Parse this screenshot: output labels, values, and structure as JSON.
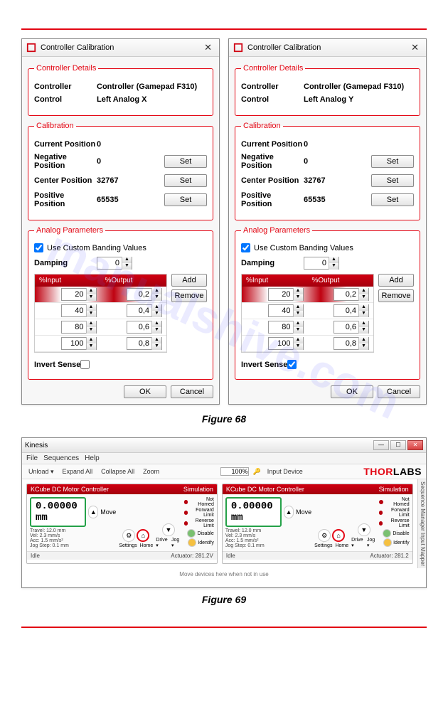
{
  "watermark": "manualshive.com",
  "hrule_color": "#e30613",
  "dialogs": {
    "left": {
      "title": "Controller Calibration",
      "details": {
        "legend": "Controller Details",
        "controller_lbl": "Controller",
        "controller_val": "Controller (Gamepad F310)",
        "control_lbl": "Control",
        "control_val": "Left Analog X"
      },
      "calibration": {
        "legend": "Calibration",
        "current_lbl": "Current Position",
        "current_val": "0",
        "negative_lbl": "Negative Position",
        "negative_val": "0",
        "center_lbl": "Center Position",
        "center_val": "32767",
        "positive_lbl": "Positive Position",
        "positive_val": "65535",
        "set_btn": "Set"
      },
      "analog": {
        "legend": "Analog Parameters",
        "use_custom_lbl": "Use Custom Banding Values",
        "use_custom_checked": true,
        "damping_lbl": "Damping",
        "damping_val": "0",
        "head_in": "%Input",
        "head_out": "%Output",
        "rows": [
          [
            "20",
            "0,2"
          ],
          [
            "40",
            "0,4"
          ],
          [
            "80",
            "0,6"
          ],
          [
            "100",
            "0,8"
          ]
        ],
        "add_btn": "Add",
        "remove_btn": "Remove",
        "invert_lbl": "Invert Sense",
        "invert_checked": false
      }
    },
    "right": {
      "title": "Controller Calibration",
      "details": {
        "legend": "Controller Details",
        "controller_lbl": "Controller",
        "controller_val": "Controller (Gamepad F310)",
        "control_lbl": "Control",
        "control_val": "Left Analog Y"
      },
      "calibration": {
        "legend": "Calibration",
        "current_lbl": "Current Position",
        "current_val": "0",
        "negative_lbl": "Negative Position",
        "negative_val": "0",
        "center_lbl": "Center Position",
        "center_val": "32767",
        "positive_lbl": "Positive Position",
        "positive_val": "65535",
        "set_btn": "Set"
      },
      "analog": {
        "legend": "Analog Parameters",
        "use_custom_lbl": "Use Custom Banding Values",
        "use_custom_checked": true,
        "damping_lbl": "Damping",
        "damping_val": "0",
        "head_in": "%Input",
        "head_out": "%Output",
        "rows": [
          [
            "20",
            "0,2"
          ],
          [
            "40",
            "0,4"
          ],
          [
            "80",
            "0,6"
          ],
          [
            "100",
            "0,8"
          ]
        ],
        "add_btn": "Add",
        "remove_btn": "Remove",
        "invert_lbl": "Invert Sense",
        "invert_checked": true
      }
    },
    "ok_btn": "OK",
    "cancel_btn": "Cancel"
  },
  "caption1": "Figure 68",
  "caption2": "Figure 69",
  "app": {
    "title": "Kinesis",
    "menu": [
      "File",
      "Sequences",
      "Help"
    ],
    "toolbar": {
      "items": [
        "Unload ▾",
        "Expand All",
        "Collapse All",
        "Zoom"
      ],
      "zoom_val": "100%",
      "input_device": "Input Device"
    },
    "brand": "THORLABS",
    "panel": {
      "name": "KCube DC Motor Controller",
      "sim": "Simulation",
      "readout": "0.00000 mm",
      "move_btn": "Move",
      "travel": "Travel: 12.0 mm",
      "vel": "Vel: 2.3 mm/s",
      "acc": "Acc: 1.5 mm/s²",
      "jog": "Jog Step: 0.1 mm",
      "settings": "Settings",
      "home": "Home",
      "drive": "Drive ▾",
      "jog_drop": "Jog ▾",
      "status": {
        "not_homed": "Not Homed",
        "fwd": "Forward Limit",
        "rev": "Reverse Limit",
        "disable": "Disable",
        "identify": "Identify"
      },
      "idle": "Idle",
      "act1": "Actuator:   281.2V",
      "act2": "Actuator:   281.2"
    },
    "msg": "Move devices here when not in use",
    "side": "Sequence Manager    Input Mapper"
  }
}
